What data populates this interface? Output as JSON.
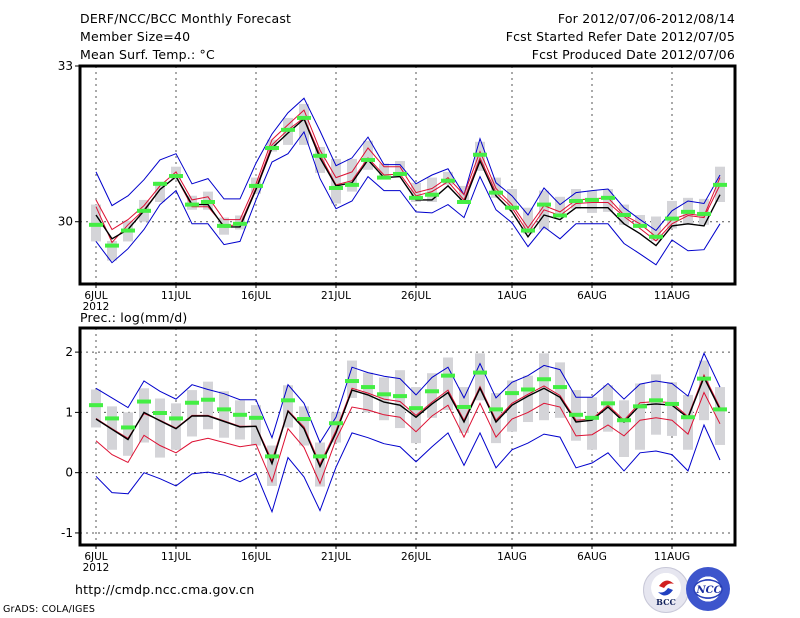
{
  "header": {
    "title": "DERF/NCC/BCC Monthly Forecast",
    "member_size": "Member Size=40",
    "variable_top": "Mean Surf. Temp.: °C",
    "period": "For 2012/07/06-2012/08/14",
    "started": "Fcst Started Refer Date 2012/07/05",
    "produced": "Fcst Produced Date 2012/07/06"
  },
  "footer": {
    "url": "http://cmdp.ncc.cma.gov.cn",
    "credit": "GrADS: COLA/IGES",
    "logos": [
      "BCC",
      "NCC"
    ]
  },
  "colors": {
    "mean": "#000000",
    "red_band": "#dd1133",
    "blue_band": "#0000cc",
    "green_bar": "#44ee44",
    "gray_box": "#d4d4d8",
    "grid": "#555555"
  },
  "chart_data": [
    {
      "type": "line",
      "title": "Mean Surf. Temp.: °C",
      "xlabel": "",
      "ylabel": "",
      "ylim": [
        28.8,
        33
      ],
      "yticks": [
        30,
        33
      ],
      "ytick_labels": [
        "30",
        "33"
      ],
      "grid": true,
      "x": [
        "6JUL",
        "7JUL",
        "8JUL",
        "9JUL",
        "10JUL",
        "11JUL",
        "12JUL",
        "13JUL",
        "14JUL",
        "15JUL",
        "16JUL",
        "17JUL",
        "18JUL",
        "19JUL",
        "20JUL",
        "21JUL",
        "22JUL",
        "23JUL",
        "24JUL",
        "25JUL",
        "26JUL",
        "27JUL",
        "28JUL",
        "29JUL",
        "30JUL",
        "31JUL",
        "1AUG",
        "2AUG",
        "3AUG",
        "4AUG",
        "5AUG",
        "6AUG",
        "7AUG",
        "8AUG",
        "9AUG",
        "10AUG",
        "11AUG",
        "12AUG",
        "13AUG",
        "14AUG"
      ],
      "xtick_labels": [
        {
          "index": 0,
          "label": "6JUL",
          "sub": "2012"
        },
        {
          "index": 5,
          "label": "11JUL"
        },
        {
          "index": 10,
          "label": "16JUL"
        },
        {
          "index": 15,
          "label": "21JUL"
        },
        {
          "index": 20,
          "label": "26JUL"
        },
        {
          "index": 26,
          "label": "1AUG"
        },
        {
          "index": 31,
          "label": "6AUG"
        },
        {
          "index": 36,
          "label": "11AUG"
        }
      ],
      "series": [
        {
          "name": "ensemble mean",
          "style": "mean",
          "values": [
            30.13,
            29.67,
            29.85,
            30.21,
            30.62,
            30.87,
            30.33,
            30.33,
            29.9,
            29.9,
            30.62,
            31.42,
            31.71,
            31.98,
            31.23,
            30.69,
            30.75,
            31.19,
            30.85,
            30.87,
            30.42,
            30.42,
            30.69,
            30.37,
            31.17,
            30.5,
            30.19,
            29.71,
            30.13,
            30.04,
            30.27,
            30.27,
            30.27,
            29.96,
            29.77,
            29.54,
            29.92,
            29.96,
            29.92,
            30.52
          ]
        },
        {
          "name": "upper red",
          "style": "red_band",
          "values": [
            30.42,
            29.85,
            30.04,
            30.31,
            30.69,
            30.96,
            30.42,
            30.48,
            30.04,
            30.04,
            30.73,
            31.58,
            31.87,
            32.15,
            31.38,
            30.85,
            30.96,
            31.42,
            31.06,
            31.06,
            30.56,
            30.64,
            30.85,
            30.52,
            31.35,
            30.64,
            30.33,
            29.88,
            30.31,
            30.19,
            30.42,
            30.44,
            30.46,
            30.13,
            29.96,
            29.71,
            30.04,
            30.15,
            30.11,
            30.85
          ]
        },
        {
          "name": "lower red",
          "style": "red_band",
          "values": [
            30.29,
            29.6,
            29.94,
            30.23,
            30.62,
            30.87,
            30.29,
            30.29,
            29.92,
            29.94,
            30.65,
            31.48,
            31.77,
            32.0,
            31.29,
            30.71,
            30.79,
            31.23,
            30.9,
            30.92,
            30.5,
            30.58,
            30.77,
            30.42,
            31.23,
            30.56,
            30.27,
            29.79,
            30.23,
            30.12,
            30.35,
            30.37,
            30.37,
            30.1,
            29.87,
            29.63,
            29.96,
            30.12,
            30.08,
            30.71
          ]
        },
        {
          "name": "upper blue",
          "style": "blue_band",
          "values": [
            30.96,
            30.31,
            30.5,
            30.81,
            31.19,
            31.31,
            30.73,
            30.83,
            30.44,
            30.44,
            31.13,
            31.69,
            32.1,
            32.38,
            31.75,
            31.08,
            31.23,
            31.63,
            31.1,
            31.1,
            30.73,
            30.9,
            31.02,
            30.52,
            31.6,
            30.75,
            30.5,
            30.13,
            30.65,
            30.33,
            30.56,
            30.6,
            30.63,
            30.27,
            30.04,
            29.83,
            30.21,
            30.4,
            30.35,
            30.9
          ]
        },
        {
          "name": "lower blue",
          "style": "blue_band",
          "values": [
            29.62,
            29.21,
            29.48,
            29.85,
            30.33,
            30.6,
            29.96,
            29.96,
            29.56,
            29.62,
            30.42,
            31.15,
            31.31,
            31.73,
            30.83,
            30.25,
            30.4,
            30.87,
            30.6,
            30.6,
            30.19,
            30.17,
            30.33,
            30.08,
            30.87,
            30.23,
            29.98,
            29.52,
            29.9,
            29.67,
            29.96,
            29.96,
            29.96,
            29.58,
            29.38,
            29.17,
            29.65,
            29.44,
            29.46,
            29.96
          ]
        }
      ],
      "green_bars": [
        29.94,
        29.54,
        29.83,
        30.21,
        30.73,
        30.88,
        30.33,
        30.38,
        29.92,
        29.96,
        30.69,
        31.42,
        31.77,
        32.0,
        31.27,
        30.65,
        30.71,
        31.19,
        30.85,
        30.92,
        30.46,
        30.52,
        30.79,
        30.38,
        31.29,
        30.56,
        30.27,
        29.83,
        30.33,
        30.12,
        30.4,
        30.42,
        30.46,
        30.13,
        29.92,
        29.71,
        30.06,
        30.19,
        30.15,
        30.71
      ],
      "gray_boxes": [
        [
          29.62,
          30.33
        ],
        [
          29.25,
          29.63
        ],
        [
          29.62,
          30.02
        ],
        [
          30.0,
          30.42
        ],
        [
          30.38,
          30.77
        ],
        [
          30.81,
          31.06
        ],
        [
          30.23,
          30.5
        ],
        [
          30.23,
          30.58
        ],
        [
          29.75,
          30.08
        ],
        [
          29.85,
          30.12
        ],
        [
          30.54,
          30.85
        ],
        [
          31.35,
          31.58
        ],
        [
          31.48,
          32.0
        ],
        [
          31.48,
          32.27
        ],
        [
          30.94,
          31.44
        ],
        [
          30.35,
          31.21
        ],
        [
          30.58,
          31.21
        ],
        [
          31.0,
          31.56
        ],
        [
          30.88,
          31.12
        ],
        [
          30.9,
          31.17
        ],
        [
          30.38,
          30.75
        ],
        [
          30.38,
          30.85
        ],
        [
          30.71,
          30.96
        ],
        [
          30.35,
          30.69
        ],
        [
          30.98,
          31.54
        ],
        [
          30.46,
          30.85
        ],
        [
          30.29,
          30.63
        ],
        [
          29.77,
          30.27
        ],
        [
          29.85,
          30.6
        ],
        [
          30.08,
          30.48
        ],
        [
          30.25,
          30.63
        ],
        [
          30.17,
          30.6
        ],
        [
          30.19,
          30.63
        ],
        [
          29.94,
          30.33
        ],
        [
          29.96,
          30.13
        ],
        [
          29.63,
          30.1
        ],
        [
          29.87,
          30.4
        ],
        [
          29.94,
          30.46
        ],
        [
          29.94,
          30.44
        ],
        [
          30.38,
          31.06
        ]
      ]
    },
    {
      "type": "line",
      "title": "Prec.: log(mm/d)",
      "xlabel": "",
      "ylabel": "",
      "ylim": [
        -1.2,
        2.4
      ],
      "yticks": [
        -1,
        0,
        1,
        2
      ],
      "ytick_labels": [
        "-1",
        "0",
        "1",
        "2"
      ],
      "grid": true,
      "x": [
        "6JUL",
        "7JUL",
        "8JUL",
        "9JUL",
        "10JUL",
        "11JUL",
        "12JUL",
        "13JUL",
        "14JUL",
        "15JUL",
        "16JUL",
        "17JUL",
        "18JUL",
        "19JUL",
        "20JUL",
        "21JUL",
        "22JUL",
        "23JUL",
        "24JUL",
        "25JUL",
        "26JUL",
        "27JUL",
        "28JUL",
        "29JUL",
        "30JUL",
        "31JUL",
        "1AUG",
        "2AUG",
        "3AUG",
        "4AUG",
        "5AUG",
        "6AUG",
        "7AUG",
        "8AUG",
        "9AUG",
        "10AUG",
        "11AUG",
        "12AUG",
        "13AUG",
        "14AUG"
      ],
      "xtick_labels": [
        {
          "index": 0,
          "label": "6JUL",
          "sub": "2012"
        },
        {
          "index": 5,
          "label": "11JUL"
        },
        {
          "index": 10,
          "label": "16JUL"
        },
        {
          "index": 15,
          "label": "21JUL"
        },
        {
          "index": 20,
          "label": "26JUL"
        },
        {
          "index": 26,
          "label": "1AUG"
        },
        {
          "index": 31,
          "label": "6AUG"
        },
        {
          "index": 36,
          "label": "11AUG"
        }
      ],
      "series": [
        {
          "name": "ensemble mean",
          "style": "mean",
          "values": [
            0.89,
            0.72,
            0.55,
            1.0,
            0.86,
            0.73,
            0.94,
            0.94,
            0.85,
            0.76,
            0.77,
            0.15,
            1.02,
            0.73,
            0.1,
            0.66,
            1.37,
            1.29,
            1.17,
            1.12,
            0.92,
            1.14,
            1.33,
            0.84,
            1.4,
            0.84,
            1.12,
            1.27,
            1.4,
            1.25,
            0.84,
            0.87,
            1.09,
            0.84,
            1.12,
            1.14,
            1.12,
            0.91,
            1.58,
            1.05
          ]
        },
        {
          "name": "upper red",
          "style": "red_band",
          "values": [
            0.9,
            0.73,
            0.57,
            0.98,
            0.87,
            0.74,
            0.95,
            0.95,
            0.86,
            0.77,
            0.77,
            0.2,
            1.03,
            0.76,
            0.14,
            0.7,
            1.4,
            1.32,
            1.22,
            1.18,
            0.95,
            1.17,
            1.37,
            0.87,
            1.43,
            0.87,
            1.15,
            1.3,
            1.44,
            1.28,
            0.87,
            0.89,
            1.12,
            0.87,
            1.16,
            1.18,
            1.16,
            0.93,
            1.62,
            1.08
          ]
        },
        {
          "name": "lower red",
          "style": "red_band",
          "values": [
            0.53,
            0.3,
            0.17,
            0.62,
            0.45,
            0.33,
            0.51,
            0.57,
            0.5,
            0.43,
            0.47,
            -0.15,
            0.73,
            0.42,
            -0.18,
            0.55,
            1.09,
            1.04,
            0.96,
            0.92,
            0.68,
            0.94,
            1.12,
            0.59,
            1.15,
            0.59,
            0.89,
            1.0,
            1.15,
            1.09,
            0.61,
            0.63,
            0.79,
            0.61,
            0.87,
            0.91,
            0.87,
            0.64,
            1.33,
            0.81
          ]
        },
        {
          "name": "upper blue",
          "style": "blue_band",
          "values": [
            1.4,
            1.24,
            1.08,
            1.52,
            1.35,
            1.22,
            1.46,
            1.38,
            1.31,
            1.21,
            1.21,
            0.58,
            1.46,
            1.15,
            0.5,
            0.92,
            1.75,
            1.66,
            1.6,
            1.56,
            1.29,
            1.58,
            1.75,
            1.24,
            1.81,
            1.24,
            1.5,
            1.61,
            1.78,
            1.71,
            1.25,
            1.25,
            1.48,
            1.22,
            1.47,
            1.52,
            1.48,
            1.27,
            1.98,
            1.42
          ]
        },
        {
          "name": "lower blue",
          "style": "blue_band",
          "values": [
            -0.06,
            -0.33,
            -0.35,
            0.0,
            -0.1,
            -0.22,
            -0.02,
            0.01,
            -0.04,
            -0.15,
            -0.01,
            -0.65,
            0.25,
            -0.07,
            -0.63,
            0.09,
            0.66,
            0.58,
            0.48,
            0.43,
            0.18,
            0.43,
            0.66,
            0.12,
            0.66,
            0.08,
            0.38,
            0.49,
            0.64,
            0.59,
            0.08,
            0.16,
            0.33,
            0.03,
            0.33,
            0.36,
            0.3,
            0.03,
            0.79,
            0.21
          ]
        }
      ],
      "green_bars": [
        1.12,
        0.9,
        0.75,
        1.18,
        0.99,
        0.9,
        1.16,
        1.21,
        1.05,
        0.96,
        0.91,
        0.27,
        1.2,
        0.89,
        0.27,
        0.82,
        1.52,
        1.42,
        1.3,
        1.27,
        1.07,
        1.35,
        1.61,
        1.09,
        1.66,
        1.05,
        1.32,
        1.38,
        1.55,
        1.42,
        0.96,
        0.91,
        1.15,
        0.87,
        1.1,
        1.2,
        1.14,
        0.92,
        1.56,
        1.05
      ],
      "gray_boxes": [
        [
          0.75,
          1.38
        ],
        [
          0.38,
          1.1
        ],
        [
          0.28,
          1.0
        ],
        [
          0.5,
          1.4
        ],
        [
          0.25,
          1.23
        ],
        [
          0.38,
          1.15
        ],
        [
          0.6,
          1.37
        ],
        [
          0.72,
          1.51
        ],
        [
          0.58,
          1.35
        ],
        [
          0.55,
          1.2
        ],
        [
          0.45,
          1.12
        ],
        [
          -0.22,
          0.45
        ],
        [
          0.75,
          1.45
        ],
        [
          0.45,
          1.1
        ],
        [
          -0.23,
          0.5
        ],
        [
          0.5,
          1.0
        ],
        [
          1.24,
          1.86
        ],
        [
          1.0,
          1.66
        ],
        [
          0.87,
          1.58
        ],
        [
          0.74,
          1.7
        ],
        [
          0.49,
          1.42
        ],
        [
          0.91,
          1.65
        ],
        [
          1.04,
          1.91
        ],
        [
          0.66,
          1.42
        ],
        [
          1.2,
          1.98
        ],
        [
          0.49,
          1.32
        ],
        [
          0.68,
          1.53
        ],
        [
          0.84,
          1.61
        ],
        [
          0.87,
          1.98
        ],
        [
          0.91,
          1.83
        ],
        [
          0.53,
          1.37
        ],
        [
          0.38,
          1.25
        ],
        [
          0.68,
          1.45
        ],
        [
          0.26,
          1.2
        ],
        [
          0.38,
          1.48
        ],
        [
          0.63,
          1.63
        ],
        [
          0.61,
          1.5
        ],
        [
          0.38,
          1.29
        ],
        [
          0.87,
          1.86
        ],
        [
          0.46,
          1.42
        ]
      ]
    }
  ]
}
